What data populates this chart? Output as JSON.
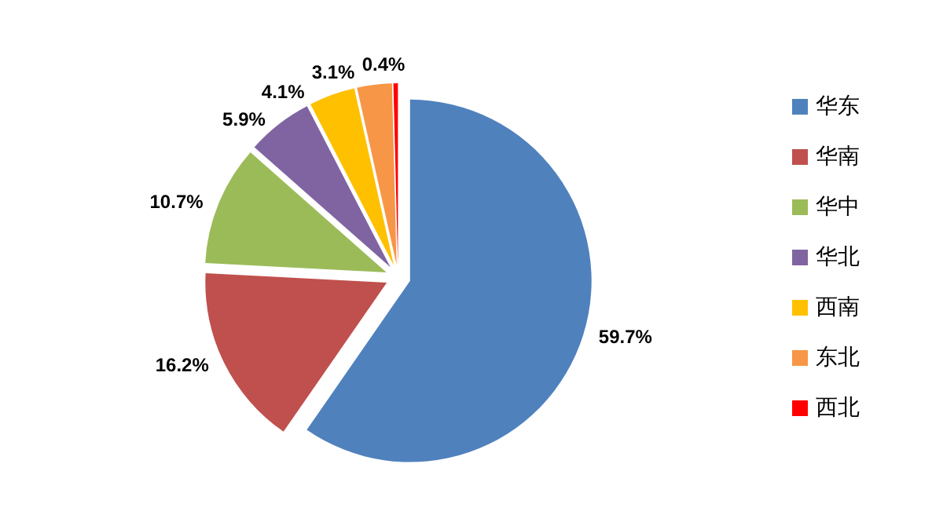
{
  "chart_data": {
    "type": "pie",
    "categories": [
      "华东",
      "华南",
      "华中",
      "华北",
      "西南",
      "东北",
      "西北"
    ],
    "values": [
      59.7,
      16.2,
      10.7,
      5.9,
      4.1,
      3.1,
      0.4
    ],
    "colors": [
      "#4f81bd",
      "#c0504d",
      "#9bbb59",
      "#8064a2",
      "#ffc000",
      "#f79646",
      "#ff0000"
    ],
    "value_labels": [
      "59.7%",
      "16.2%",
      "10.7%",
      "5.9%",
      "4.1%",
      "3.1%",
      "0.4%"
    ],
    "legend": "right"
  }
}
